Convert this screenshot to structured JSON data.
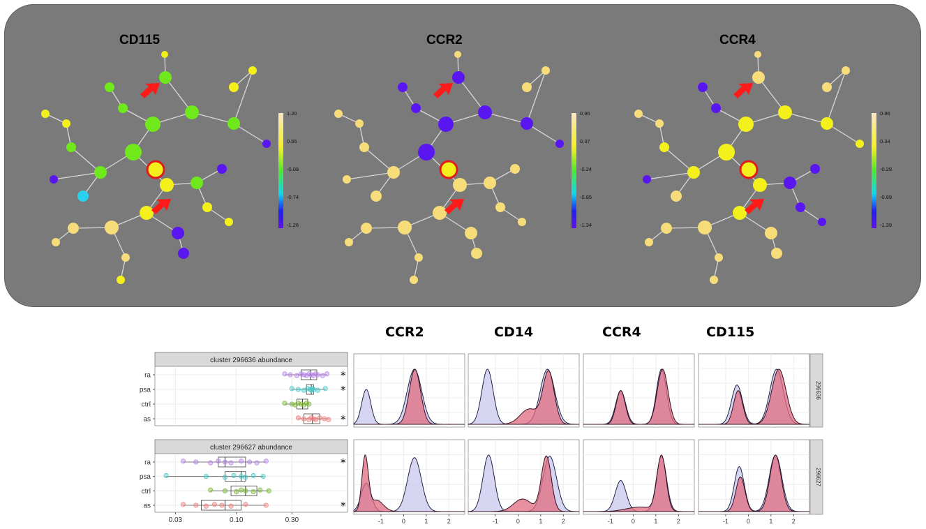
{
  "colors": {
    "panel_bg": "#7a7a7a",
    "arrow": "#ff1a1a",
    "highlight_ring": "#e01b1b",
    "overlay_blue": "#c8c8ef",
    "overlay_red": "#e06b7f"
  },
  "networks": [
    {
      "title": "CD115",
      "legend_ticks": [
        "1.20",
        "0.55",
        "-0.09",
        "-0.74",
        "-1.26"
      ]
    },
    {
      "title": "CCR2",
      "legend_ticks": [
        "0.96",
        "0.37",
        "-0.24",
        "-0.85",
        "-1.34"
      ]
    },
    {
      "title": "CCR4",
      "legend_ticks": [
        "0.96",
        "0.34",
        "-0.28",
        "-0.89",
        "-1.39"
      ]
    }
  ],
  "histogram_titles": [
    "CCR2",
    "CD14",
    "CCR4",
    "CD115"
  ],
  "histogram_row_labels": [
    "296636",
    "296627"
  ],
  "x_ticks_set1": [
    "-1",
    "0",
    "1",
    "2"
  ],
  "x_ticks_set2": [
    "-1",
    "0",
    "1",
    "2"
  ],
  "chart_data": [
    {
      "type": "box",
      "title": "cluster 296636 abundance",
      "categories": [
        "ra",
        "psa",
        "ctrl",
        "as"
      ],
      "x_scale": "log",
      "significance": [
        "*",
        "*",
        "",
        "*"
      ],
      "box_q1": [
        0.36,
        0.4,
        0.33,
        0.38
      ],
      "box_median": [
        0.43,
        0.44,
        0.37,
        0.45
      ],
      "box_q3": [
        0.49,
        0.46,
        0.41,
        0.52
      ],
      "points": [
        [
          0.26,
          0.29,
          0.33,
          0.36,
          0.38,
          0.4,
          0.42,
          0.44,
          0.46,
          0.48,
          0.5,
          0.55,
          0.6
        ],
        [
          0.3,
          0.34,
          0.38,
          0.41,
          0.43,
          0.44,
          0.45,
          0.46,
          0.5,
          0.58
        ],
        [
          0.26,
          0.3,
          0.32,
          0.34,
          0.36,
          0.38,
          0.4,
          0.42
        ],
        [
          0.34,
          0.38,
          0.42,
          0.44,
          0.46,
          0.48,
          0.52,
          0.57,
          0.62
        ]
      ]
    },
    {
      "type": "box",
      "title": "cluster 296627 abundance",
      "categories": [
        "ra",
        "psa",
        "ctrl",
        "as"
      ],
      "x_scale": "log",
      "xticks": [
        "0.03",
        "0.10",
        "0.30"
      ],
      "significance": [
        "*",
        "",
        "",
        "*"
      ],
      "box_q1": [
        0.07,
        0.08,
        0.09,
        0.05
      ],
      "box_median": [
        0.08,
        0.11,
        0.12,
        0.08
      ],
      "box_q3": [
        0.12,
        0.12,
        0.15,
        0.11
      ],
      "points": [
        [
          0.035,
          0.045,
          0.06,
          0.07,
          0.08,
          0.09,
          0.11,
          0.13,
          0.15,
          0.18
        ],
        [
          0.025,
          0.055,
          0.08,
          0.095,
          0.11,
          0.12,
          0.14,
          0.17
        ],
        [
          0.06,
          0.08,
          0.1,
          0.11,
          0.12,
          0.14,
          0.16,
          0.19
        ],
        [
          0.035,
          0.045,
          0.055,
          0.065,
          0.075,
          0.09,
          0.12,
          0.18
        ]
      ]
    }
  ]
}
